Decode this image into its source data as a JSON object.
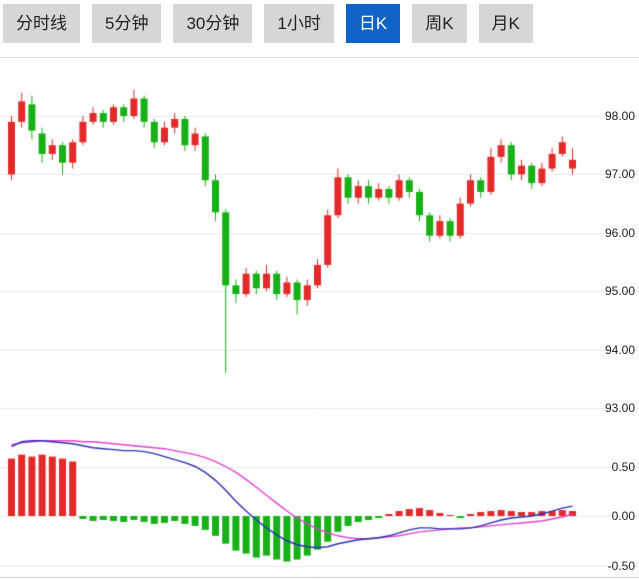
{
  "tabs": [
    {
      "label": "分时线",
      "active": false
    },
    {
      "label": "5分钟",
      "active": false
    },
    {
      "label": "30分钟",
      "active": false
    },
    {
      "label": "1小时",
      "active": false
    },
    {
      "label": "日K",
      "active": true
    },
    {
      "label": "周K",
      "active": false
    },
    {
      "label": "月K",
      "active": false
    }
  ],
  "colors": {
    "up": "#e22a29",
    "down": "#17b017",
    "dif_line": "#2b32b5",
    "dea_line": "#e63fd0",
    "grid": "#eaeaea",
    "panel_border": "#cccccc",
    "axis_text": "#222222",
    "tab_bg": "#d6d6d6",
    "tab_text": "#222222",
    "tab_active_bg": "#1263c8",
    "tab_active_text": "#ffffff"
  },
  "price_axis": {
    "labels": [
      "98.00",
      "97.00",
      "96.00",
      "95.00",
      "94.00",
      "93.00"
    ],
    "values": [
      98,
      97,
      96,
      95,
      94,
      93
    ]
  },
  "macd_axis": {
    "labels": [
      "0.50",
      "0.00",
      "-0.50"
    ],
    "values": [
      0.5,
      0,
      -0.5
    ]
  },
  "chart_data": {
    "type": "candlestick",
    "title": "",
    "panels": [
      "price-candles",
      "macd-histogram-with-dif-dea-lines"
    ],
    "price_ylim": [
      92.8,
      99.0
    ],
    "macd_ylim": [
      -0.63,
      0.84
    ],
    "grid": true,
    "candles_ohlc_format": [
      "open",
      "high",
      "low",
      "close"
    ],
    "candles": [
      [
        97.0,
        98.0,
        96.9,
        97.9
      ],
      [
        97.9,
        98.4,
        97.8,
        98.25
      ],
      [
        98.2,
        98.35,
        97.6,
        97.75
      ],
      [
        97.7,
        97.8,
        97.2,
        97.35
      ],
      [
        97.35,
        97.6,
        97.25,
        97.5
      ],
      [
        97.5,
        97.55,
        97.0,
        97.2
      ],
      [
        97.2,
        97.6,
        97.1,
        97.55
      ],
      [
        97.55,
        98.0,
        97.5,
        97.9
      ],
      [
        97.9,
        98.15,
        97.85,
        98.05
      ],
      [
        98.05,
        98.1,
        97.8,
        97.9
      ],
      [
        97.9,
        98.2,
        97.85,
        98.15
      ],
      [
        98.15,
        98.2,
        97.9,
        98.0
      ],
      [
        98.0,
        98.45,
        97.95,
        98.3
      ],
      [
        98.3,
        98.35,
        97.8,
        97.9
      ],
      [
        97.9,
        97.95,
        97.45,
        97.55
      ],
      [
        97.55,
        97.9,
        97.5,
        97.8
      ],
      [
        97.8,
        98.05,
        97.7,
        97.95
      ],
      [
        97.95,
        98.0,
        97.4,
        97.5
      ],
      [
        97.5,
        97.8,
        97.4,
        97.7
      ],
      [
        97.65,
        97.7,
        96.8,
        96.9
      ],
      [
        96.9,
        97.0,
        96.2,
        96.35
      ],
      [
        96.35,
        96.4,
        93.6,
        95.1
      ],
      [
        95.1,
        95.2,
        94.8,
        94.95
      ],
      [
        94.95,
        95.4,
        94.9,
        95.3
      ],
      [
        95.3,
        95.35,
        94.95,
        95.05
      ],
      [
        95.05,
        95.45,
        95.0,
        95.3
      ],
      [
        95.3,
        95.35,
        94.85,
        94.95
      ],
      [
        94.95,
        95.25,
        94.9,
        95.15
      ],
      [
        95.15,
        95.2,
        94.6,
        94.85
      ],
      [
        94.85,
        95.2,
        94.75,
        95.1
      ],
      [
        95.1,
        95.55,
        95.05,
        95.45
      ],
      [
        95.45,
        96.4,
        95.4,
        96.3
      ],
      [
        96.3,
        97.1,
        96.25,
        96.95
      ],
      [
        96.95,
        97.0,
        96.5,
        96.6
      ],
      [
        96.6,
        96.9,
        96.5,
        96.8
      ],
      [
        96.8,
        96.9,
        96.5,
        96.6
      ],
      [
        96.6,
        96.85,
        96.55,
        96.75
      ],
      [
        96.75,
        96.8,
        96.5,
        96.6
      ],
      [
        96.6,
        97.0,
        96.55,
        96.9
      ],
      [
        96.9,
        96.95,
        96.6,
        96.7
      ],
      [
        96.7,
        96.75,
        96.2,
        96.3
      ],
      [
        96.3,
        96.35,
        95.85,
        95.95
      ],
      [
        95.95,
        96.3,
        95.9,
        96.2
      ],
      [
        96.2,
        96.25,
        95.85,
        95.95
      ],
      [
        95.95,
        96.6,
        95.9,
        96.5
      ],
      [
        96.5,
        97.0,
        96.45,
        96.9
      ],
      [
        96.9,
        96.95,
        96.6,
        96.7
      ],
      [
        96.7,
        97.45,
        96.65,
        97.3
      ],
      [
        97.3,
        97.6,
        97.2,
        97.5
      ],
      [
        97.5,
        97.55,
        96.9,
        97.0
      ],
      [
        97.0,
        97.25,
        96.9,
        97.15
      ],
      [
        97.15,
        97.2,
        96.75,
        96.85
      ],
      [
        96.85,
        97.2,
        96.8,
        97.1
      ],
      [
        97.1,
        97.45,
        97.05,
        97.35
      ],
      [
        97.35,
        97.65,
        97.3,
        97.55
      ],
      [
        97.1,
        97.45,
        97.0,
        97.25
      ]
    ],
    "macd": {
      "hist": [
        0.58,
        0.62,
        0.6,
        0.62,
        0.6,
        0.58,
        0.55,
        -0.03,
        -0.05,
        -0.04,
        -0.05,
        -0.06,
        -0.04,
        -0.06,
        -0.08,
        -0.07,
        -0.05,
        -0.08,
        -0.1,
        -0.14,
        -0.2,
        -0.28,
        -0.35,
        -0.38,
        -0.42,
        -0.4,
        -0.44,
        -0.46,
        -0.44,
        -0.4,
        -0.34,
        -0.26,
        -0.16,
        -0.1,
        -0.06,
        -0.04,
        -0.02,
        0.02,
        0.05,
        0.07,
        0.08,
        0.06,
        0.03,
        0.01,
        -0.02,
        0.02,
        0.04,
        0.05,
        0.06,
        0.05,
        0.04,
        0.04,
        0.05,
        0.05,
        0.06,
        0.05
      ],
      "dif": [
        0.7,
        0.75,
        0.76,
        0.76,
        0.75,
        0.74,
        0.73,
        0.71,
        0.69,
        0.68,
        0.67,
        0.66,
        0.66,
        0.65,
        0.63,
        0.6,
        0.57,
        0.54,
        0.5,
        0.44,
        0.36,
        0.26,
        0.15,
        0.05,
        -0.04,
        -0.12,
        -0.19,
        -0.25,
        -0.29,
        -0.31,
        -0.32,
        -0.31,
        -0.28,
        -0.26,
        -0.24,
        -0.23,
        -0.22,
        -0.2,
        -0.17,
        -0.14,
        -0.12,
        -0.12,
        -0.13,
        -0.13,
        -0.13,
        -0.12,
        -0.1,
        -0.07,
        -0.04,
        -0.02,
        -0.01,
        0.0,
        0.02,
        0.05,
        0.08,
        0.1
      ],
      "dea": [
        0.72,
        0.74,
        0.75,
        0.76,
        0.76,
        0.76,
        0.76,
        0.75,
        0.75,
        0.74,
        0.73,
        0.72,
        0.71,
        0.7,
        0.69,
        0.68,
        0.66,
        0.64,
        0.62,
        0.59,
        0.55,
        0.5,
        0.44,
        0.37,
        0.29,
        0.21,
        0.13,
        0.05,
        -0.02,
        -0.08,
        -0.13,
        -0.17,
        -0.2,
        -0.22,
        -0.23,
        -0.23,
        -0.22,
        -0.21,
        -0.2,
        -0.18,
        -0.16,
        -0.15,
        -0.14,
        -0.13,
        -0.12,
        -0.12,
        -0.11,
        -0.1,
        -0.09,
        -0.08,
        -0.07,
        -0.06,
        -0.05,
        -0.03,
        -0.01,
        0.02
      ]
    }
  }
}
